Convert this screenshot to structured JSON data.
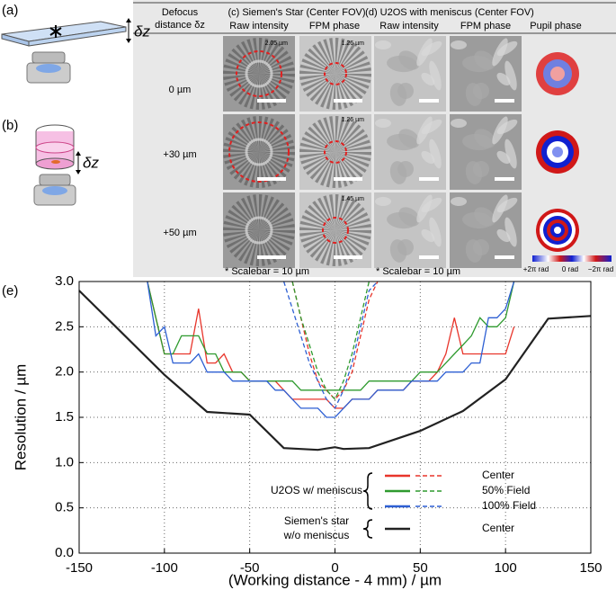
{
  "figure": {
    "label_a": "(a)",
    "label_b": "(b)",
    "label_e": "(e)",
    "dz_a": "δz",
    "dz_b": "δz",
    "header_defocus": [
      "Defocus",
      "distance δz"
    ],
    "header_c": "(c) Siemen's Star (Center FOV)",
    "header_d": "(d) U2OS with meniscus (Center FOV)",
    "columns": [
      "Raw intensity",
      "FPM phase",
      "Raw intensity",
      "FPM phase",
      "Pupil phase"
    ],
    "rows": [
      "0 µm",
      "+30 µm",
      "+50 µm"
    ],
    "resolution_labels": [
      "2.05 µm",
      "1.26 µm",
      "1.26 µm",
      "1.45 µm"
    ],
    "scalebar_c": "* Scalebar = 10 µm",
    "scalebar_d": "* Scalebar = 10 µm",
    "colorbar_labels": [
      "+2π rad",
      "0 rad",
      "−2π rad"
    ]
  },
  "chart_data": {
    "type": "line",
    "x_label": "(Working distance - 4 mm) / µm",
    "y_label": "Resolution / µm",
    "xlim": [
      -150,
      150
    ],
    "xticks": [
      -150,
      -100,
      -50,
      0,
      50,
      100,
      150
    ],
    "ylim": [
      0,
      3
    ],
    "yticks": [
      {
        "value": 0,
        "label": "0.0"
      },
      0.5,
      {
        "value": 1,
        "label": "1.0"
      },
      1.5,
      {
        "value": 2,
        "label": "2.0"
      },
      2.5,
      {
        "value": 3,
        "label": "3.0"
      }
    ],
    "grid": true,
    "series": [
      {
        "color": "#e8352b",
        "dashed": false,
        "x": [
          -110,
          -105,
          -100,
          -95,
          -90,
          -85,
          -80,
          -75,
          -70,
          -65,
          -60,
          -55,
          -50,
          -45,
          -40,
          -35,
          -30,
          -25,
          -20,
          -15,
          -10,
          -5,
          0,
          5,
          10,
          15,
          20,
          25,
          30,
          35,
          40,
          45,
          50,
          55,
          60,
          65,
          70,
          75,
          80,
          85,
          90,
          95,
          100,
          105
        ],
        "values": [
          3.0,
          2.6,
          2.2,
          2.2,
          2.2,
          2.2,
          2.7,
          2.1,
          2.1,
          2.2,
          2.0,
          2.0,
          1.9,
          1.9,
          1.9,
          1.9,
          1.8,
          1.7,
          1.7,
          1.7,
          1.7,
          1.7,
          1.6,
          1.6,
          1.7,
          1.7,
          1.7,
          1.8,
          1.8,
          1.8,
          1.8,
          1.9,
          1.9,
          1.9,
          2.0,
          2.2,
          2.6,
          2.2,
          2.2,
          2.2,
          2.2,
          2.2,
          2.2,
          2.5
        ]
      },
      {
        "color": "#2e9a2e",
        "dashed": false,
        "x": [
          -110,
          -105,
          -100,
          -95,
          -90,
          -85,
          -80,
          -75,
          -70,
          -65,
          -60,
          -55,
          -50,
          -45,
          -40,
          -35,
          -30,
          -25,
          -20,
          -15,
          -10,
          -5,
          0,
          5,
          10,
          15,
          20,
          25,
          30,
          35,
          40,
          45,
          50,
          55,
          60,
          65,
          70,
          75,
          80,
          85,
          90,
          95,
          100,
          105
        ],
        "values": [
          3.0,
          2.6,
          2.2,
          2.2,
          2.4,
          2.4,
          2.4,
          2.2,
          2.2,
          2.0,
          2.0,
          2.0,
          1.9,
          1.9,
          1.9,
          1.9,
          1.9,
          1.9,
          1.8,
          1.8,
          1.8,
          1.8,
          1.8,
          1.8,
          1.8,
          1.8,
          1.9,
          1.9,
          1.9,
          1.9,
          1.9,
          1.9,
          2.0,
          2.0,
          2.0,
          2.1,
          2.2,
          2.3,
          2.4,
          2.6,
          2.5,
          2.5,
          2.6,
          3.0
        ]
      },
      {
        "color": "#2d5fd3",
        "dashed": false,
        "x": [
          -110,
          -105,
          -100,
          -95,
          -90,
          -85,
          -80,
          -75,
          -70,
          -65,
          -60,
          -55,
          -50,
          -45,
          -40,
          -35,
          -30,
          -25,
          -20,
          -15,
          -10,
          -5,
          0,
          5,
          10,
          15,
          20,
          25,
          30,
          35,
          40,
          45,
          50,
          55,
          60,
          65,
          70,
          75,
          80,
          85,
          90,
          95,
          100,
          105
        ],
        "values": [
          3.0,
          2.4,
          2.5,
          2.1,
          2.1,
          2.1,
          2.2,
          2.0,
          2.0,
          2.0,
          1.9,
          1.9,
          1.9,
          1.9,
          1.9,
          1.8,
          1.8,
          1.7,
          1.6,
          1.6,
          1.6,
          1.5,
          1.5,
          1.6,
          1.7,
          1.7,
          1.7,
          1.8,
          1.8,
          1.8,
          1.8,
          1.9,
          1.9,
          1.9,
          1.9,
          2.0,
          2.0,
          2.0,
          2.1,
          2.1,
          2.6,
          2.6,
          2.7,
          3.0
        ]
      },
      {
        "color": "#e8352b",
        "dashed": true,
        "x": [
          -25,
          -20,
          -15,
          -10,
          -5,
          0,
          5,
          10,
          15,
          20,
          25
        ],
        "values": [
          3.0,
          2.6,
          2.2,
          1.9,
          1.8,
          1.7,
          1.8,
          2.0,
          2.4,
          2.8,
          3.0
        ]
      },
      {
        "color": "#2e9a2e",
        "dashed": true,
        "x": [
          -25,
          -20,
          -15,
          -10,
          -5,
          0,
          5,
          10,
          15,
          20
        ],
        "values": [
          3.0,
          2.6,
          2.3,
          2.0,
          1.8,
          1.7,
          1.9,
          2.2,
          2.6,
          3.0
        ]
      },
      {
        "color": "#2d5fd3",
        "dashed": true,
        "x": [
          -30,
          -25,
          -20,
          -15,
          -10,
          -5,
          0,
          5,
          10,
          15,
          20,
          25
        ],
        "values": [
          3.0,
          2.7,
          2.4,
          2.1,
          1.9,
          1.7,
          1.6,
          1.8,
          2.1,
          2.5,
          2.9,
          3.0
        ]
      },
      {
        "color": "#222222",
        "dashed": false,
        "x": [
          -150,
          -100,
          -75,
          -50,
          -30,
          -10,
          0,
          5,
          20,
          50,
          75,
          100,
          125,
          150
        ],
        "values": [
          2.9,
          1.97,
          1.56,
          1.53,
          1.16,
          1.14,
          1.17,
          1.15,
          1.16,
          1.35,
          1.57,
          1.92,
          2.59,
          2.62
        ]
      }
    ],
    "legend": {
      "groups": [
        {
          "label": [
            "U2OS w/ meniscus"
          ],
          "entries": [
            {
              "label": "Center",
              "color": "#e8352b",
              "dashed": true
            },
            {
              "label": "50% Field",
              "color": "#2e9a2e",
              "dashed": true
            },
            {
              "label": "100% Field",
              "color": "#2d5fd3",
              "dashed": true
            }
          ]
        },
        {
          "label": [
            "Siemen's star",
            "w/o meniscus"
          ],
          "entries": [
            {
              "label": "Center",
              "color": "#222222",
              "dashed": false
            }
          ]
        }
      ]
    }
  }
}
